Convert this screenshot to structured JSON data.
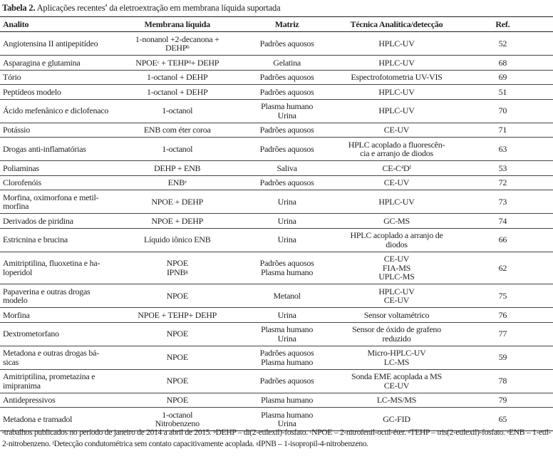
{
  "caption": {
    "label": "Tabela 2.",
    "text_before": " Aplicações recentes",
    "sup": "a",
    "text_after": " da eletroextração em membrana líquida suportada"
  },
  "headers": [
    "Analito",
    "Membrana líquida",
    "Matriz",
    "Técnica Analítica/detecção",
    "Ref."
  ],
  "rows": [
    [
      [
        "Angiotensina II antipepitídeo"
      ],
      [
        "1-nonanol +2-decanona +",
        "DEHP^b"
      ],
      [
        "Padrões aquosos"
      ],
      [
        "HPLC-UV"
      ],
      [
        "52"
      ]
    ],
    [
      [
        "Asparagina e glutamina"
      ],
      [
        "NPOE^c + TEHP^d+ DEHP"
      ],
      [
        "Gelatina"
      ],
      [
        "HPLC-UV"
      ],
      [
        "68"
      ]
    ],
    [
      [
        "Tório"
      ],
      [
        "1-octanol + DEHP"
      ],
      [
        "Padrões aquosos"
      ],
      [
        "Espectrofotometria UV-VIS"
      ],
      [
        "69"
      ]
    ],
    [
      [
        "Peptídeos modelo"
      ],
      [
        "1-octanol + DEHP"
      ],
      [
        "Padrões aquosos"
      ],
      [
        "HPLC-UV"
      ],
      [
        "51"
      ]
    ],
    [
      [
        "Ácido mefenânico e diclofenaco"
      ],
      [
        "1-octanol"
      ],
      [
        "Plasma humano",
        "Urina"
      ],
      [
        "HPLC-UV"
      ],
      [
        "70"
      ]
    ],
    [
      [
        "Potássio"
      ],
      [
        "ENB com éter coroa"
      ],
      [
        "Padrões aquosos"
      ],
      [
        "CE-UV"
      ],
      [
        "71"
      ]
    ],
    [
      [
        "Drogas anti-inflamatórias"
      ],
      [
        "1-octanol"
      ],
      [
        "Padrões aquosos"
      ],
      [
        "HPLC acoplado a fluorescên-",
        "cia e arranjo de diodos"
      ],
      [
        "63"
      ]
    ],
    [
      [
        "Poliaminas"
      ],
      [
        "DEHP + ENB"
      ],
      [
        "Saliva"
      ],
      [
        "CE-C^4D^f"
      ],
      [
        "53"
      ]
    ],
    [
      [
        "Clorofenóis"
      ],
      [
        "ENB^e"
      ],
      [
        "Padrões aquosos"
      ],
      [
        "CE-UV"
      ],
      [
        "72"
      ]
    ],
    [
      [
        "Morfina, oximorfona e metil-",
        "morfina"
      ],
      [
        "NPOE + DEHP"
      ],
      [
        "Urina"
      ],
      [
        "HPLC-UV"
      ],
      [
        "73"
      ]
    ],
    [
      [
        "Derivados de piridina"
      ],
      [
        "NPOE + DEHP"
      ],
      [
        "Urina"
      ],
      [
        "GC-MS"
      ],
      [
        "74"
      ]
    ],
    [
      [
        "Estricnina e brucina"
      ],
      [
        "Líquido iônico ENB"
      ],
      [
        "Urina"
      ],
      [
        "HPLC acoplado a arranjo de",
        "diodos"
      ],
      [
        "66"
      ]
    ],
    [
      [
        "Amitriptilina, fluoxetina e ha-",
        "loperidol"
      ],
      [
        "NPOE",
        "IPNB^g"
      ],
      [
        "Padrões aquosos",
        "Plasma humano"
      ],
      [
        "CE-UV",
        "FIA-MS",
        "UPLC-MS"
      ],
      [
        "62"
      ]
    ],
    [
      [
        "Papaverina e outras drogas",
        "modelo"
      ],
      [
        "NPOE"
      ],
      [
        "Metanol"
      ],
      [
        "HPLC-UV",
        "CE-UV"
      ],
      [
        "75"
      ]
    ],
    [
      [
        "Morfina"
      ],
      [
        "NPOE + TEHP+ DEHP"
      ],
      [
        "Urina"
      ],
      [
        "Sensor voltamétrico"
      ],
      [
        "76"
      ]
    ],
    [
      [
        "Dextrometorfano"
      ],
      [
        "NPOE"
      ],
      [
        "Plasma humano",
        "Urina"
      ],
      [
        "Sensor de óxido de grafeno",
        "reduzido"
      ],
      [
        "77"
      ]
    ],
    [
      [
        "Metadona e outras drogas bá-",
        "sicas"
      ],
      [
        "NPOE"
      ],
      [
        "Padrões aquosos",
        "Plasma humano"
      ],
      [
        "Micro-HPLC-UV",
        "LC-MS"
      ],
      [
        "59"
      ]
    ],
    [
      [
        "Amitriptilina, prometazina e",
        "imipranima"
      ],
      [
        "NPOE"
      ],
      [
        "Padrões aquosos"
      ],
      [
        "Sonda EME acoplada a MS",
        "CE-UV"
      ],
      [
        "78"
      ]
    ],
    [
      [
        "Antidepressivos"
      ],
      [
        "NPOE"
      ],
      [
        "Plasma humano"
      ],
      [
        "LC-MS/MS"
      ],
      [
        "79"
      ]
    ],
    [
      [
        "Metadona e tramadol"
      ],
      [
        "1-octanol",
        "Nitrobenzeno"
      ],
      [
        "Plasma humano",
        "Urina"
      ],
      [
        "GC-FID"
      ],
      [
        "65"
      ]
    ]
  ],
  "footnotes": [
    {
      "sup": "a",
      "text": "trabalhos publicados no período de janeiro de 2014 a abril de 2015. "
    },
    {
      "sup": "b",
      "text": "DEHP – di(2-etilexil)-fosfato. "
    },
    {
      "sup": "c",
      "text": "NPOE – 2-nitrofenil-octil-éter. "
    },
    {
      "sup": "d",
      "text": "TEHP – tris(2-etilexil)-fosfato. "
    },
    {
      "sup": "e",
      "text": "ENB – 1-etil-2-nitrobenzeno. "
    },
    {
      "sup": "f",
      "text": "Detecção condutométrica sem contato capacitivamente acoplada. "
    },
    {
      "sup": "g",
      "text": "IPNB – 1-isopropil-4-nitrobenzeno."
    }
  ]
}
